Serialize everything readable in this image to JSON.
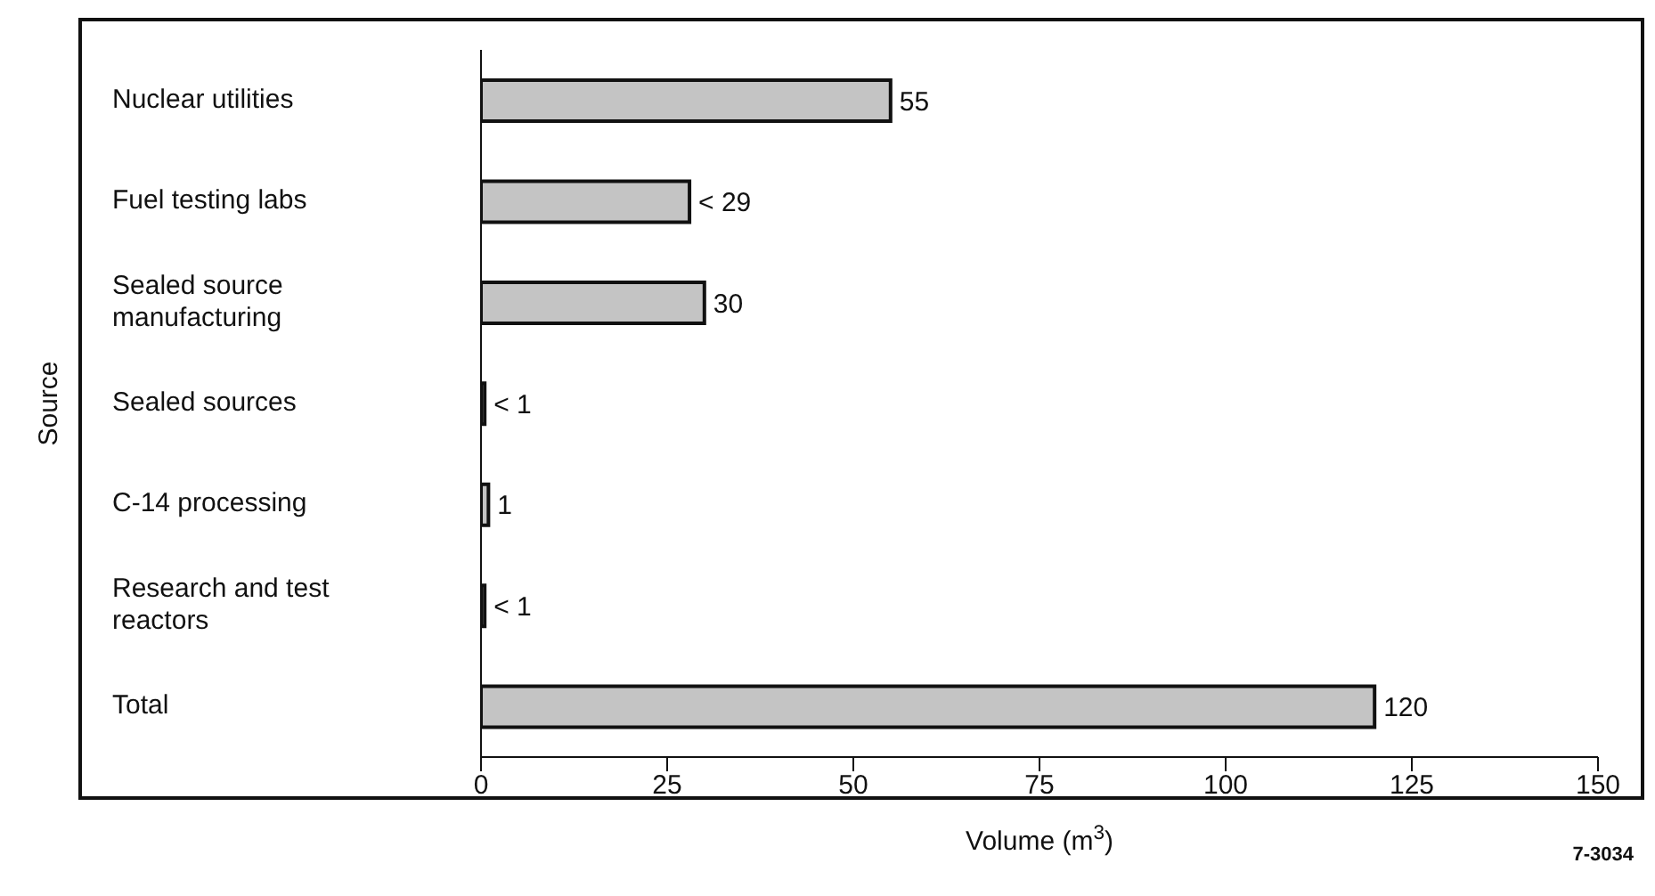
{
  "chart_data": {
    "type": "bar",
    "orientation": "horizontal",
    "categories": [
      "Nuclear utilities",
      "Fuel testing labs",
      "Sealed source manufacturing",
      "Sealed sources",
      "C-14 processing",
      "Research and test reactors",
      "Total"
    ],
    "values": [
      55,
      28,
      30,
      0.5,
      1,
      0.5,
      120
    ],
    "value_labels": [
      "55",
      "< 29",
      "30",
      "< 1",
      "1",
      "< 1",
      "120"
    ],
    "color": "#c4c4c4",
    "xlim": [
      0,
      150
    ],
    "xticks": [
      0,
      25,
      50,
      75,
      100,
      125,
      150
    ],
    "xlabel": "Volume (m$^{3}$)",
    "ylabel": "Source",
    "grid": false,
    "annotations": [
      "7-3034"
    ]
  }
}
